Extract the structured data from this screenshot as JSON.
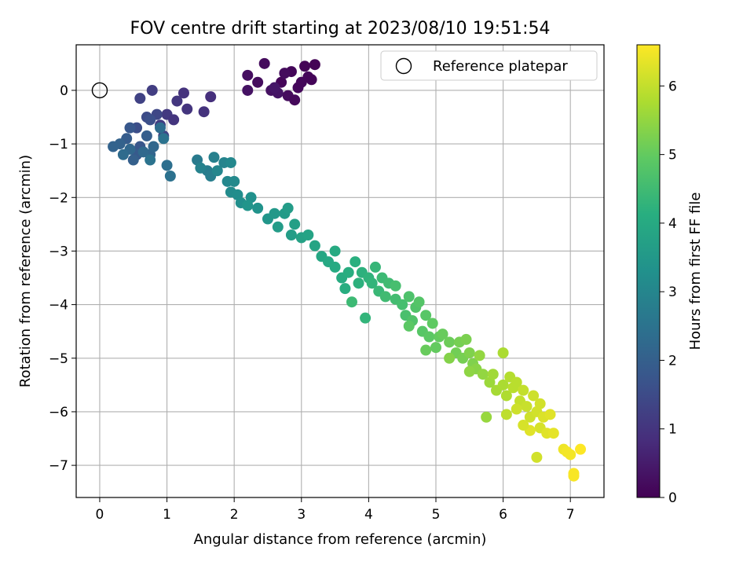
{
  "chart_data": {
    "type": "scatter",
    "title": "FOV centre drift starting at 2023/08/10 19:51:54",
    "xlabel": "Angular distance from reference (arcmin)",
    "ylabel": "Rotation from reference (arcmin)",
    "xlim": [
      -0.35,
      7.5
    ],
    "ylim": [
      -7.6,
      0.85
    ],
    "xticks": [
      0,
      1,
      2,
      3,
      4,
      5,
      6,
      7
    ],
    "yticks": [
      0,
      -1,
      -2,
      -3,
      -4,
      -5,
      -6,
      -7
    ],
    "grid": true,
    "legend": {
      "position": "top-right",
      "label": "Reference platepar"
    },
    "reference_point": {
      "x": 0,
      "y": 0
    },
    "colorbar": {
      "label": "Hours from first FF file",
      "range": [
        0,
        6.6
      ],
      "ticks": [
        0,
        1,
        2,
        3,
        4,
        5,
        6
      ],
      "colormap": "viridis"
    },
    "series": [
      {
        "points": [
          [
            2.7,
            0.15,
            0.08
          ],
          [
            2.85,
            0.35,
            0.1
          ],
          [
            2.95,
            0.05,
            0.12
          ],
          [
            3.05,
            0.45,
            0.05
          ],
          [
            2.45,
            0.5,
            0.18
          ],
          [
            2.2,
            0.28,
            0.25
          ],
          [
            2.35,
            0.15,
            0.22
          ],
          [
            2.55,
            0.0,
            0.3
          ],
          [
            2.65,
            -0.05,
            0.35
          ],
          [
            2.8,
            -0.1,
            0.2
          ],
          [
            2.9,
            -0.18,
            0.15
          ],
          [
            3.0,
            0.15,
            0.12
          ],
          [
            3.1,
            0.25,
            0.1
          ],
          [
            3.2,
            0.48,
            0.05
          ],
          [
            3.15,
            0.2,
            0.08
          ],
          [
            2.75,
            0.32,
            0.2
          ],
          [
            2.6,
            0.05,
            0.4
          ],
          [
            2.2,
            0.0,
            0.32
          ],
          [
            1.65,
            -0.12,
            0.9
          ],
          [
            1.55,
            -0.4,
            0.95
          ],
          [
            1.25,
            -0.05,
            0.95
          ],
          [
            1.3,
            -0.35,
            1.0
          ],
          [
            1.15,
            -0.2,
            1.05
          ],
          [
            1.0,
            -0.45,
            1.1
          ],
          [
            0.9,
            -0.65,
            1.15
          ],
          [
            0.78,
            0.0,
            1.2
          ],
          [
            0.6,
            -0.15,
            1.3
          ],
          [
            1.1,
            -0.55,
            1.0
          ],
          [
            0.95,
            -0.85,
            1.35
          ],
          [
            0.7,
            -0.5,
            1.5
          ],
          [
            0.85,
            -0.45,
            1.4
          ],
          [
            0.55,
            -0.7,
            1.55
          ],
          [
            0.75,
            -0.55,
            1.6
          ],
          [
            0.6,
            -1.05,
            1.75
          ],
          [
            0.45,
            -0.7,
            1.8
          ],
          [
            0.55,
            -1.2,
            1.85
          ],
          [
            0.4,
            -0.9,
            1.9
          ],
          [
            0.7,
            -0.85,
            1.95
          ],
          [
            0.5,
            -1.3,
            2.0
          ],
          [
            0.3,
            -1.0,
            2.05
          ],
          [
            0.2,
            -1.05,
            2.1
          ],
          [
            0.75,
            -1.2,
            2.15
          ],
          [
            0.45,
            -1.1,
            2.2
          ],
          [
            0.8,
            -1.05,
            2.2
          ],
          [
            0.65,
            -1.15,
            2.25
          ],
          [
            0.35,
            -1.2,
            2.3
          ],
          [
            0.9,
            -0.7,
            2.35
          ],
          [
            1.0,
            -1.4,
            2.4
          ],
          [
            1.05,
            -1.6,
            2.45
          ],
          [
            0.95,
            -0.9,
            2.5
          ],
          [
            0.75,
            -1.3,
            2.5
          ],
          [
            1.45,
            -1.3,
            2.7
          ],
          [
            1.6,
            -1.5,
            2.75
          ],
          [
            1.65,
            -1.6,
            2.8
          ],
          [
            1.7,
            -1.25,
            2.85
          ],
          [
            1.5,
            -1.45,
            2.9
          ],
          [
            1.85,
            -1.35,
            2.95
          ],
          [
            1.75,
            -1.5,
            3.0
          ],
          [
            1.95,
            -1.35,
            3.05
          ],
          [
            1.9,
            -1.7,
            3.05
          ],
          [
            2.0,
            -1.7,
            3.1
          ],
          [
            1.95,
            -1.9,
            3.15
          ],
          [
            2.05,
            -1.95,
            3.2
          ],
          [
            2.1,
            -2.1,
            3.25
          ],
          [
            2.25,
            -2.0,
            3.3
          ],
          [
            2.35,
            -2.2,
            3.35
          ],
          [
            2.2,
            -2.15,
            3.4
          ],
          [
            2.5,
            -2.4,
            3.45
          ],
          [
            2.6,
            -2.3,
            3.5
          ],
          [
            2.75,
            -2.3,
            3.55
          ],
          [
            2.65,
            -2.55,
            3.6
          ],
          [
            2.8,
            -2.2,
            3.6
          ],
          [
            2.85,
            -2.7,
            3.65
          ],
          [
            2.9,
            -2.5,
            3.7
          ],
          [
            3.0,
            -2.75,
            3.75
          ],
          [
            3.1,
            -2.7,
            3.8
          ],
          [
            3.2,
            -2.9,
            3.85
          ],
          [
            3.3,
            -3.1,
            3.9
          ],
          [
            3.4,
            -3.2,
            3.95
          ],
          [
            3.5,
            -3.0,
            4.0
          ],
          [
            3.5,
            -3.3,
            4.0
          ],
          [
            3.6,
            -3.5,
            4.05
          ],
          [
            3.7,
            -3.4,
            4.1
          ],
          [
            3.65,
            -3.7,
            4.1
          ],
          [
            3.8,
            -3.2,
            4.15
          ],
          [
            3.85,
            -3.6,
            4.2
          ],
          [
            3.9,
            -3.4,
            4.2
          ],
          [
            4.0,
            -3.5,
            4.25
          ],
          [
            3.95,
            -4.25,
            4.3
          ],
          [
            4.05,
            -3.6,
            4.3
          ],
          [
            4.1,
            -3.3,
            4.35
          ],
          [
            4.15,
            -3.75,
            4.4
          ],
          [
            4.2,
            -3.5,
            4.45
          ],
          [
            3.75,
            -3.95,
            4.45
          ],
          [
            4.25,
            -3.85,
            4.5
          ],
          [
            4.3,
            -3.6,
            4.5
          ],
          [
            4.4,
            -3.9,
            4.55
          ],
          [
            4.5,
            -4.0,
            4.6
          ],
          [
            4.4,
            -3.65,
            4.6
          ],
          [
            4.55,
            -4.2,
            4.65
          ],
          [
            4.6,
            -3.85,
            4.7
          ],
          [
            4.65,
            -4.3,
            4.75
          ],
          [
            4.7,
            -4.05,
            4.75
          ],
          [
            4.75,
            -3.95,
            4.8
          ],
          [
            4.8,
            -4.5,
            4.85
          ],
          [
            4.85,
            -4.2,
            4.85
          ],
          [
            4.6,
            -4.4,
            4.9
          ],
          [
            4.9,
            -4.6,
            4.9
          ],
          [
            4.95,
            -4.35,
            4.95
          ],
          [
            5.0,
            -4.8,
            5.0
          ],
          [
            5.05,
            -4.6,
            5.0
          ],
          [
            5.1,
            -4.55,
            5.05
          ],
          [
            4.85,
            -4.85,
            5.05
          ],
          [
            5.2,
            -4.7,
            5.1
          ],
          [
            5.3,
            -4.9,
            5.15
          ],
          [
            5.35,
            -4.7,
            5.2
          ],
          [
            5.4,
            -5.0,
            5.2
          ],
          [
            5.45,
            -4.65,
            5.25
          ],
          [
            5.5,
            -4.9,
            5.3
          ],
          [
            5.55,
            -5.1,
            5.3
          ],
          [
            5.2,
            -5.0,
            5.35
          ],
          [
            5.6,
            -5.2,
            5.4
          ],
          [
            5.5,
            -5.25,
            5.45
          ],
          [
            5.7,
            -5.3,
            5.5
          ],
          [
            5.65,
            -4.95,
            5.5
          ],
          [
            5.75,
            -6.1,
            5.55
          ],
          [
            5.8,
            -5.45,
            5.6
          ],
          [
            5.85,
            -5.3,
            5.65
          ],
          [
            5.9,
            -5.6,
            5.7
          ],
          [
            6.0,
            -4.9,
            5.75
          ],
          [
            6.0,
            -5.5,
            5.75
          ],
          [
            6.05,
            -5.7,
            5.8
          ],
          [
            6.1,
            -5.35,
            5.85
          ],
          [
            6.15,
            -5.55,
            5.9
          ],
          [
            6.2,
            -5.45,
            5.9
          ],
          [
            6.05,
            -6.05,
            5.95
          ],
          [
            6.25,
            -5.8,
            6.0
          ],
          [
            6.3,
            -5.6,
            6.0
          ],
          [
            6.35,
            -5.9,
            6.05
          ],
          [
            6.4,
            -6.1,
            6.1
          ],
          [
            6.45,
            -5.7,
            6.1
          ],
          [
            6.2,
            -5.95,
            6.1
          ],
          [
            6.5,
            -6.85,
            6.15
          ],
          [
            6.5,
            -6.0,
            6.15
          ],
          [
            6.55,
            -6.3,
            6.2
          ],
          [
            6.6,
            -6.1,
            6.25
          ],
          [
            6.65,
            -6.4,
            6.3
          ],
          [
            6.7,
            -6.05,
            6.3
          ],
          [
            6.75,
            -6.4,
            6.35
          ],
          [
            6.4,
            -6.35,
            6.3
          ],
          [
            6.9,
            -6.7,
            6.45
          ],
          [
            6.95,
            -6.75,
            6.5
          ],
          [
            7.0,
            -6.8,
            6.5
          ],
          [
            7.05,
            -7.15,
            6.55
          ],
          [
            7.05,
            -7.2,
            6.55
          ],
          [
            7.15,
            -6.7,
            6.6
          ],
          [
            6.3,
            -6.25,
            6.2
          ],
          [
            6.55,
            -5.85,
            6.15
          ]
        ]
      }
    ]
  }
}
